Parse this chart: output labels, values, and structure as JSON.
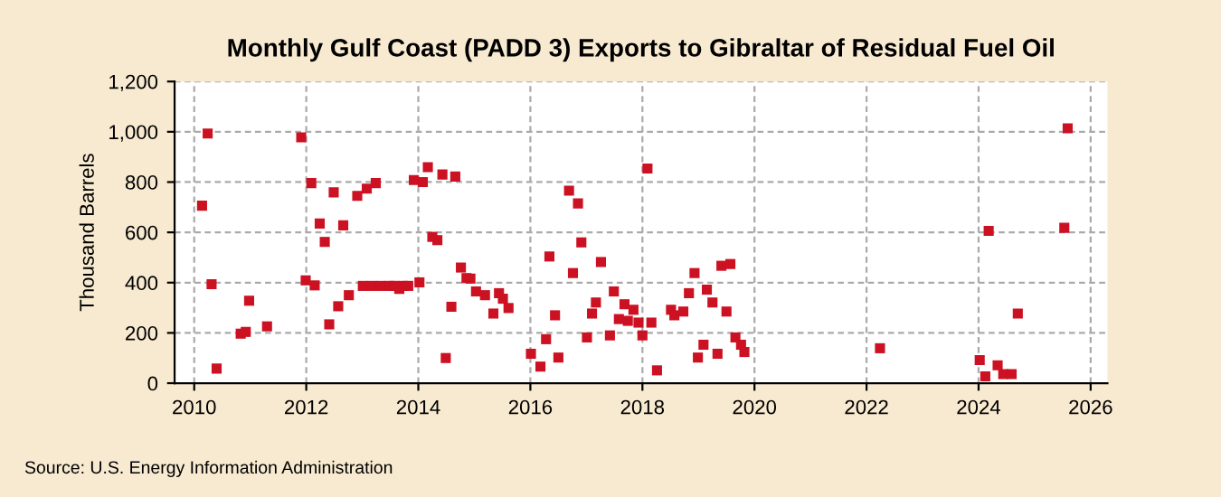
{
  "chart_data": {
    "type": "scatter",
    "title": "Monthly Gulf Coast (PADD 3) Exports to Gibraltar of Residual Fuel Oil",
    "ylabel": "Thousand Barrels",
    "annotations": [
      "Source: U.S. Energy Information Administration"
    ],
    "xlim": [
      2009.65,
      2026.3
    ],
    "xticks": [
      2010,
      2012,
      2014,
      2016,
      2018,
      2020,
      2022,
      2024,
      2026
    ],
    "ylim": [
      0,
      1200
    ],
    "yticks": [
      {
        "value": 0,
        "label": "0"
      },
      {
        "value": 200,
        "label": "200"
      },
      {
        "value": 400,
        "label": "400"
      },
      {
        "value": 600,
        "label": "600"
      },
      {
        "value": 800,
        "label": "800"
      },
      {
        "value": 1000,
        "label": "1,000"
      },
      {
        "value": 1200,
        "label": "1,200"
      }
    ],
    "grid": true,
    "marker": "square",
    "series": [
      {
        "color": "#cc1122",
        "x": [
          2010.14,
          2010.24,
          2010.31,
          2010.4,
          2010.83,
          2010.92,
          2010.98,
          2011.3,
          2011.91,
          2011.99,
          2012.09,
          2012.15,
          2012.24,
          2012.33,
          2012.41,
          2012.49,
          2012.57,
          2012.66,
          2012.76,
          2012.91,
          2013.01,
          2013.08,
          2013.17,
          2013.24,
          2013.33,
          2013.49,
          2013.57,
          2013.66,
          2013.73,
          2013.82,
          2013.92,
          2014.02,
          2014.08,
          2014.17,
          2014.25,
          2014.34,
          2014.43,
          2014.49,
          2014.59,
          2014.66,
          2014.76,
          2014.86,
          2014.93,
          2015.03,
          2015.19,
          2015.34,
          2015.44,
          2015.51,
          2015.61,
          2016.01,
          2016.18,
          2016.28,
          2016.34,
          2016.44,
          2016.5,
          2016.69,
          2016.76,
          2016.85,
          2016.91,
          2017.01,
          2017.1,
          2017.17,
          2017.26,
          2017.42,
          2017.49,
          2017.58,
          2017.68,
          2017.74,
          2017.84,
          2017.93,
          2018.0,
          2018.09,
          2018.16,
          2018.26,
          2018.51,
          2018.57,
          2018.73,
          2018.83,
          2018.93,
          2018.99,
          2019.09,
          2019.15,
          2019.25,
          2019.34,
          2019.41,
          2019.5,
          2019.57,
          2019.66,
          2019.76,
          2019.82,
          2022.24,
          2024.02,
          2024.12,
          2024.18,
          2024.34,
          2024.44,
          2024.59,
          2024.7,
          2025.53,
          2025.59
        ],
        "values": [
          706,
          993,
          394,
          58,
          197,
          204,
          328,
          226,
          978,
          409,
          796,
          389,
          635,
          562,
          234,
          759,
          306,
          628,
          350,
          745,
          387,
          774,
          387,
          796,
          387,
          387,
          387,
          375,
          387,
          387,
          808,
          401,
          800,
          859,
          582,
          569,
          830,
          100,
          304,
          822,
          460,
          418,
          416,
          365,
          350,
          277,
          358,
          336,
          299,
          117,
          66,
          175,
          504,
          270,
          102,
          766,
          438,
          715,
          560,
          182,
          277,
          321,
          482,
          190,
          365,
          255,
          314,
          248,
          292,
          241,
          190,
          854,
          241,
          51,
          292,
          270,
          285,
          358,
          438,
          102,
          153,
          372,
          321,
          117,
          467,
          285,
          474,
          182,
          153,
          124,
          139,
          92,
          27,
          606,
          71,
          36,
          36,
          277,
          618,
          1014
        ]
      }
    ]
  }
}
